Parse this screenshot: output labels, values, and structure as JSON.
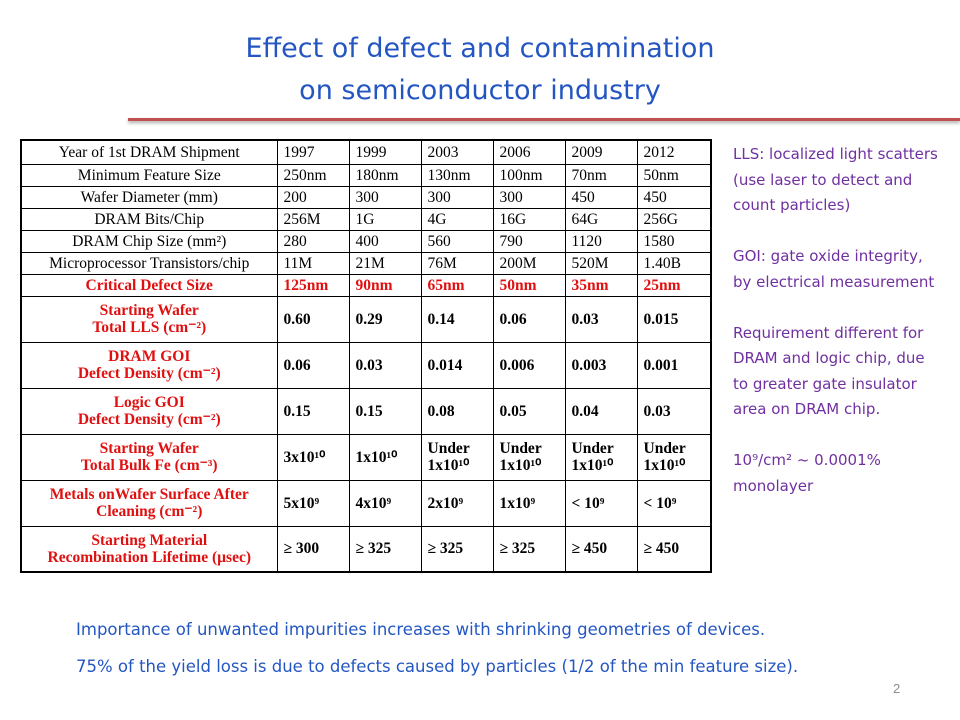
{
  "slide": {
    "title_line1": "Effect of defect and contamination",
    "title_line2": "on semiconductor industry",
    "page_number": "2"
  },
  "table": {
    "header": {
      "label": "Year of 1st DRAM Shipment",
      "values": [
        "1997",
        "1999",
        "2003",
        "2006",
        "2009",
        "2012"
      ]
    },
    "rows": [
      {
        "label": "Minimum Feature Size",
        "values": [
          "250nm",
          "180nm",
          "130nm",
          "100nm",
          "70nm",
          "50nm"
        ],
        "style": "normal"
      },
      {
        "label": "Wafer Diameter (mm)",
        "values": [
          "200",
          "300",
          "300",
          "300",
          "450",
          "450"
        ],
        "style": "normal"
      },
      {
        "label": "DRAM Bits/Chip",
        "values": [
          "256M",
          "1G",
          "4G",
          "16G",
          "64G",
          "256G"
        ],
        "style": "normal"
      },
      {
        "label": "DRAM Chip Size (mm²)",
        "values": [
          "280",
          "400",
          "560",
          "790",
          "1120",
          "1580"
        ],
        "style": "normal"
      },
      {
        "label": "Microprocessor Transistors/chip",
        "values": [
          "11M",
          "21M",
          "76M",
          "200M",
          "520M",
          "1.40B"
        ],
        "style": "normal"
      },
      {
        "label": "Critical Defect Size",
        "values": [
          "125nm",
          "90nm",
          "65nm",
          "50nm",
          "35nm",
          "25nm"
        ],
        "style": "red"
      },
      {
        "label": "Starting Wafer\nTotal LLS (cm⁻²)",
        "values": [
          "0.60",
          "0.29",
          "0.14",
          "0.06",
          "0.03",
          "0.015"
        ],
        "style": "red-label"
      },
      {
        "label": "DRAM GOI\nDefect Density (cm⁻²)",
        "values": [
          "0.06",
          "0.03",
          "0.014",
          "0.006",
          "0.003",
          "0.001"
        ],
        "style": "red-label"
      },
      {
        "label": "Logic GOI\nDefect Density (cm⁻²)",
        "values": [
          "0.15",
          "0.15",
          "0.08",
          "0.05",
          "0.04",
          "0.03"
        ],
        "style": "red-label"
      },
      {
        "label": "Starting Wafer\nTotal Bulk Fe (cm⁻³)",
        "values": [
          "3x10¹⁰",
          "1x10¹⁰",
          "Under\n1x10¹⁰",
          "Under\n1x10¹⁰",
          "Under\n1x10¹⁰",
          "Under\n1x10¹⁰"
        ],
        "style": "red-label"
      },
      {
        "label": "Metals onWafer Surface After\nCleaning (cm⁻²)",
        "values": [
          "5x10⁹",
          "4x10⁹",
          "2x10⁹",
          "1x10⁹",
          "< 10⁹",
          "< 10⁹"
        ],
        "style": "red-label"
      },
      {
        "label": "Starting Material\nRecombination Lifetime (µsec)",
        "values": [
          "≥ 300",
          "≥ 325",
          "≥ 325",
          "≥ 325",
          "≥ 450",
          "≥ 450"
        ],
        "style": "red-label"
      }
    ]
  },
  "notes": {
    "lls": "LLS: localized light scatters (use laser to detect and count particles)",
    "goi": "GOI: gate oxide integrity, by electrical measurement",
    "requirement": "Requirement  different for DRAM and logic chip, due to greater gate insulator area on DRAM chip.",
    "monolayer": "10⁹/cm² ~ 0.0001% monolayer"
  },
  "footer": {
    "line1": "Importance of unwanted impurities increases with shrinking geometries of devices.",
    "line2": "75% of the yield loss is due to defects caused by particles (1/2 of the min feature size)."
  },
  "colors": {
    "title": "#2456c2",
    "accent_rule": "#c0504d",
    "notes_text": "#7030a0",
    "table_highlight": "#e01010"
  }
}
